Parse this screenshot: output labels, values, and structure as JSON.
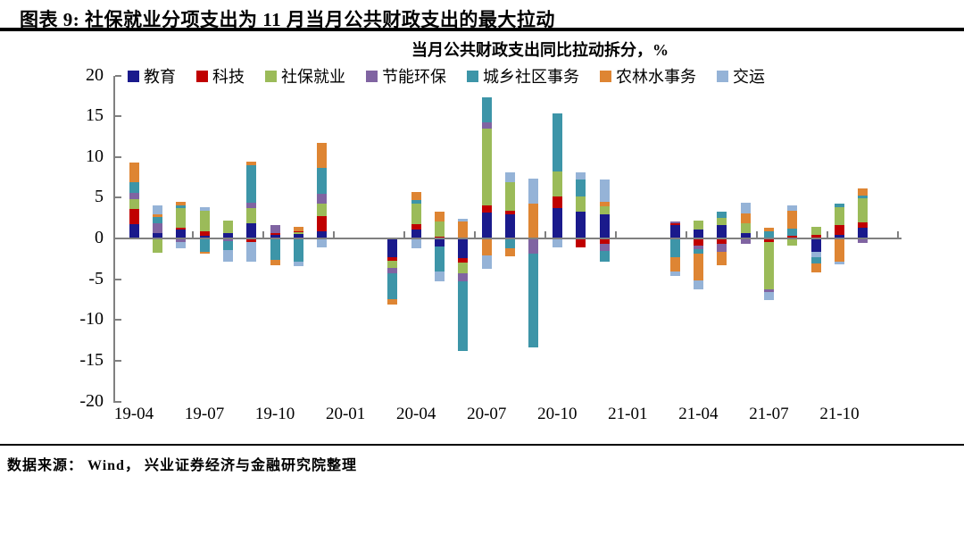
{
  "figure": {
    "title": "图表 9:  社保就业分项支出为 11 月当月公共财政支出的最大拉动",
    "source": "数据来源： Wind， 兴业证券经济与金融研究院整理"
  },
  "chart_data": {
    "type": "bar",
    "stacked": true,
    "title": "当月公共财政支出同比拉动拆分，%",
    "unit": "%",
    "grid": false,
    "legend_position": "top",
    "ylim": [
      -20,
      20
    ],
    "y_ticks": [
      20,
      15,
      10,
      5,
      0,
      -5,
      -10,
      -15,
      -20
    ],
    "x_tick_labels": [
      "19-04",
      "19-07",
      "19-10",
      "20-01",
      "20-04",
      "20-07",
      "20-10",
      "21-01",
      "21-04",
      "21-07",
      "21-10"
    ],
    "series_order": [
      "教育",
      "科技",
      "社保就业",
      "节能环保",
      "城乡社区事务",
      "农林水事务",
      "交运"
    ],
    "series_colors": {
      "教育": "#1A1A8C",
      "科技": "#C00000",
      "社保就业": "#9BBB59",
      "节能环保": "#8064A2",
      "城乡社区事务": "#3D95A8",
      "农林水事务": "#DE8533",
      "交运": "#95B3D7"
    },
    "bars": [
      {
        "month": "19-04",
        "pos": [
          [
            "教育",
            1.6
          ],
          [
            "科技",
            1.9
          ],
          [
            "社保就业",
            1.2
          ],
          [
            "节能环保",
            0.8
          ],
          [
            "城乡社区事务",
            1.3
          ],
          [
            "农林水事务",
            2.4
          ]
        ],
        "neg": []
      },
      {
        "month": "19-05",
        "pos": [
          [
            "教育",
            0.5
          ],
          [
            "节能环保",
            1.2
          ],
          [
            "城乡社区事务",
            0.8
          ],
          [
            "农林水事务",
            0.4
          ],
          [
            "交运",
            1.0
          ]
        ],
        "neg": [
          [
            "社保就业",
            1.6
          ]
        ]
      },
      {
        "month": "19-06",
        "pos": [
          [
            "教育",
            1.0
          ],
          [
            "科技",
            0.2
          ],
          [
            "社保就业",
            2.4
          ],
          [
            "城乡社区事务",
            0.3
          ],
          [
            "农林水事务",
            0.5
          ]
        ],
        "neg": [
          [
            "节能环保",
            0.3
          ],
          [
            "交运",
            0.8
          ]
        ]
      },
      {
        "month": "19-07",
        "pos": [
          [
            "教育",
            0.2
          ],
          [
            "科技",
            0.6
          ],
          [
            "社保就业",
            2.5
          ],
          [
            "交运",
            0.4
          ]
        ],
        "neg": [
          [
            "城乡社区事务",
            1.5
          ],
          [
            "农林水事务",
            0.3
          ]
        ]
      },
      {
        "month": "19-08",
        "pos": [
          [
            "教育",
            0.5
          ],
          [
            "社保就业",
            1.6
          ]
        ],
        "neg": [
          [
            "节能环保",
            0.2
          ],
          [
            "城乡社区事务",
            1.1
          ],
          [
            "交运",
            1.4
          ]
        ]
      },
      {
        "month": "19-09",
        "pos": [
          [
            "教育",
            1.7
          ],
          [
            "社保就业",
            1.9
          ],
          [
            "节能环保",
            0.7
          ],
          [
            "城乡社区事务",
            4.6
          ],
          [
            "农林水事务",
            0.4
          ]
        ],
        "neg": [
          [
            "科技",
            0.3
          ],
          [
            "交运",
            2.4
          ]
        ]
      },
      {
        "month": "19-10",
        "pos": [
          [
            "教育",
            0.3
          ],
          [
            "科技",
            0.3
          ],
          [
            "节能环保",
            0.9
          ]
        ],
        "neg": [
          [
            "城乡社区事务",
            2.5
          ],
          [
            "农林水事务",
            0.7
          ]
        ]
      },
      {
        "month": "19-11",
        "pos": [
          [
            "教育",
            0.4
          ],
          [
            "社保就业",
            0.3
          ],
          [
            "科技",
            0.1
          ],
          [
            "农林水事务",
            0.5
          ]
        ],
        "neg": [
          [
            "城乡社区事务",
            2.7
          ],
          [
            "交运",
            0.6
          ]
        ]
      },
      {
        "month": "19-12",
        "pos": [
          [
            "教育",
            0.8
          ],
          [
            "科技",
            1.8
          ],
          [
            "社保就业",
            1.6
          ],
          [
            "节能环保",
            1.2
          ],
          [
            "城乡社区事务",
            3.2
          ],
          [
            "农林水事务",
            3.0
          ]
        ],
        "neg": [
          [
            "交运",
            1.0
          ]
        ]
      },
      {
        "month": "20-03",
        "pos": [],
        "neg": [
          [
            "教育",
            2.2
          ],
          [
            "科技",
            0.45
          ],
          [
            "社保就业",
            0.9
          ],
          [
            "节能环保",
            0.6
          ],
          [
            "城乡社区事务",
            3.2
          ],
          [
            "农林水事务",
            0.6
          ]
        ]
      },
      {
        "month": "20-04",
        "pos": [
          [
            "教育",
            1.0
          ],
          [
            "科技",
            0.6
          ],
          [
            "社保就业",
            2.6
          ],
          [
            "城乡社区事务",
            0.45
          ],
          [
            "农林水事务",
            0.95
          ]
        ],
        "neg": [
          [
            "交运",
            1.1
          ]
        ]
      },
      {
        "month": "20-05",
        "pos": [
          [
            "科技",
            0.1
          ],
          [
            "社保就业",
            1.9
          ],
          [
            "农林水事务",
            1.2
          ]
        ],
        "neg": [
          [
            "教育",
            0.85
          ],
          [
            "城乡社区事务",
            3.1
          ],
          [
            "交运",
            1.15
          ]
        ]
      },
      {
        "month": "20-06",
        "pos": [
          [
            "农林水事务",
            2.0
          ],
          [
            "交运",
            0.3
          ]
        ],
        "neg": [
          [
            "教育",
            2.3
          ],
          [
            "科技",
            0.5
          ],
          [
            "社保就业",
            1.4
          ],
          [
            "节能环保",
            0.9
          ],
          [
            "城乡社区事务",
            8.6
          ]
        ]
      },
      {
        "month": "20-07",
        "pos": [
          [
            "教育",
            3.05
          ],
          [
            "科技",
            0.85
          ],
          [
            "社保就业",
            9.5
          ],
          [
            "节能环保",
            0.7
          ],
          [
            "城乡社区事务",
            3.1
          ]
        ],
        "neg": [
          [
            "农林水事务",
            2.0
          ],
          [
            "交运",
            1.6
          ]
        ]
      },
      {
        "month": "20-08",
        "pos": [
          [
            "教育",
            2.8
          ],
          [
            "科技",
            0.5
          ],
          [
            "社保就业",
            3.5
          ],
          [
            "交运",
            1.15
          ]
        ],
        "neg": [
          [
            "城乡社区事务",
            1.05
          ],
          [
            "农林水事务",
            1.05
          ]
        ]
      },
      {
        "month": "20-09",
        "pos": [
          [
            "农林水事务",
            4.2
          ],
          [
            "交运",
            3.0
          ]
        ],
        "neg": [
          [
            "节能环保",
            1.7
          ],
          [
            "城乡社区事务",
            11.6
          ]
        ]
      },
      {
        "month": "20-10",
        "pos": [
          [
            "教育",
            3.6
          ],
          [
            "科技",
            1.4
          ],
          [
            "社保就业",
            3.1
          ],
          [
            "城乡社区事务",
            7.15
          ]
        ],
        "neg": [
          [
            "交运",
            1.0
          ]
        ]
      },
      {
        "month": "20-11",
        "pos": [
          [
            "教育",
            3.15
          ],
          [
            "社保就业",
            1.85
          ],
          [
            "城乡社区事务",
            2.1
          ],
          [
            "交运",
            0.95
          ]
        ],
        "neg": [
          [
            "科技",
            1.0
          ]
        ]
      },
      {
        "month": "20-12",
        "pos": [
          [
            "教育",
            2.9
          ],
          [
            "社保就业",
            0.95
          ],
          [
            "农林水事务",
            0.5
          ],
          [
            "交运",
            2.75
          ]
        ],
        "neg": [
          [
            "科技",
            0.6
          ],
          [
            "节能环保",
            0.8
          ],
          [
            "城乡社区事务",
            1.3
          ]
        ]
      },
      {
        "month": "21-03",
        "pos": [
          [
            "教育",
            1.5
          ],
          [
            "科技",
            0.2
          ],
          [
            "节能环保",
            0.3
          ]
        ],
        "neg": [
          [
            "城乡社区事务",
            2.2
          ],
          [
            "农林水事务",
            1.7
          ],
          [
            "交运",
            0.6
          ]
        ]
      },
      {
        "month": "21-04",
        "pos": [
          [
            "教育",
            1.0
          ],
          [
            "社保就业",
            1.1
          ]
        ],
        "neg": [
          [
            "科技",
            0.8
          ],
          [
            "节能环保",
            0.4
          ],
          [
            "城乡社区事务",
            0.6
          ],
          [
            "农林水事务",
            3.2
          ],
          [
            "交运",
            1.1
          ]
        ]
      },
      {
        "month": "21-05",
        "pos": [
          [
            "教育",
            1.5
          ],
          [
            "社保就业",
            0.9
          ],
          [
            "城乡社区事务",
            0.8
          ]
        ],
        "neg": [
          [
            "科技",
            0.5
          ],
          [
            "节能环保",
            1.0
          ],
          [
            "农林水事务",
            1.7
          ]
        ]
      },
      {
        "month": "21-06",
        "pos": [
          [
            "教育",
            0.5
          ],
          [
            "社保就业",
            1.2
          ],
          [
            "农林水事务",
            1.3
          ],
          [
            "交运",
            1.3
          ]
        ],
        "neg": [
          [
            "节能环保",
            0.6
          ]
        ]
      },
      {
        "month": "21-07",
        "pos": [
          [
            "城乡社区事务",
            0.75
          ],
          [
            "农林水事务",
            0.5
          ]
        ],
        "neg": [
          [
            "科技",
            0.3
          ],
          [
            "社保就业",
            5.8
          ],
          [
            "节能环保",
            0.4
          ],
          [
            "交运",
            0.9
          ]
        ]
      },
      {
        "month": "21-08",
        "pos": [
          [
            "科技",
            0.25
          ],
          [
            "城乡社区事务",
            0.85
          ],
          [
            "农林水事务",
            2.2
          ],
          [
            "交运",
            0.6
          ]
        ],
        "neg": [
          [
            "社保就业",
            0.8
          ]
        ]
      },
      {
        "month": "21-09",
        "pos": [
          [
            "科技",
            0.3
          ],
          [
            "社保就业",
            1.0
          ]
        ],
        "neg": [
          [
            "教育",
            1.5
          ],
          [
            "交运",
            0.7
          ],
          [
            "城乡社区事务",
            0.8
          ],
          [
            "农林水事务",
            1.1
          ]
        ]
      },
      {
        "month": "21-10",
        "pos": [
          [
            "教育",
            0.3
          ],
          [
            "科技",
            1.2
          ],
          [
            "社保就业",
            2.2
          ],
          [
            "城乡社区事务",
            0.5
          ]
        ],
        "neg": [
          [
            "农林水事务",
            2.7
          ],
          [
            "交运",
            0.4
          ]
        ]
      },
      {
        "month": "21-11",
        "pos": [
          [
            "教育",
            1.2
          ],
          [
            "科技",
            0.7
          ],
          [
            "社保就业",
            2.9
          ],
          [
            "城乡社区事务",
            0.35
          ],
          [
            "农林水事务",
            0.9
          ]
        ],
        "neg": [
          [
            "节能环保",
            0.4
          ]
        ]
      }
    ]
  }
}
